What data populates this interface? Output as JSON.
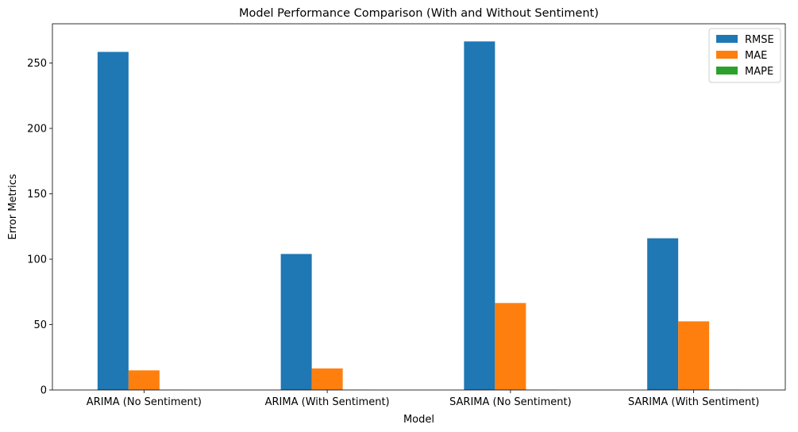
{
  "chart_data": {
    "type": "bar",
    "title": "Model Performance Comparison (With and Without Sentiment)",
    "xlabel": "Model",
    "ylabel": "Error Metrics",
    "categories": [
      "ARIMA (No Sentiment)",
      "ARIMA (With Sentiment)",
      "SARIMA (No Sentiment)",
      "SARIMA (With Sentiment)"
    ],
    "series": [
      {
        "name": "RMSE",
        "color": "#1f77b4",
        "values": [
          258.5,
          104,
          266.5,
          116
        ]
      },
      {
        "name": "MAE",
        "color": "#ff7f0e",
        "values": [
          15,
          16.5,
          66.5,
          52.5
        ]
      },
      {
        "name": "MAPE",
        "color": "#2ca02c",
        "values": [
          0.1,
          0.1,
          0.2,
          0.2
        ]
      }
    ],
    "ylim": [
      0,
      280
    ],
    "yticks": [
      0,
      50,
      100,
      150,
      200,
      250
    ],
    "grid": false,
    "legend_position": "top-right"
  }
}
